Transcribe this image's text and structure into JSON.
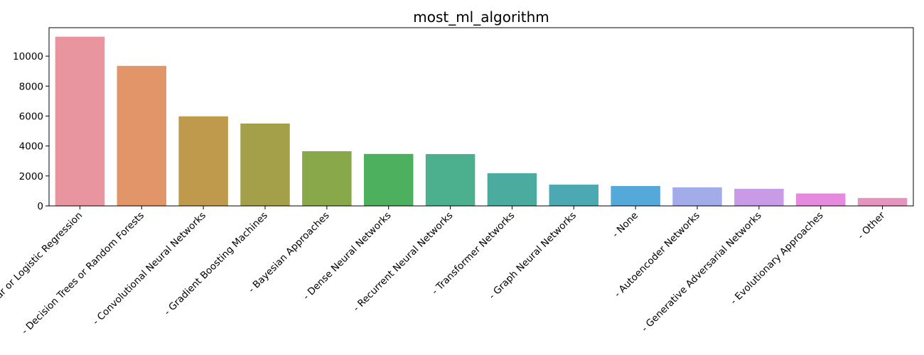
{
  "chart_data": {
    "type": "bar",
    "title": "most_ml_algorithm",
    "xlabel": "",
    "ylabel": "",
    "categories": [
      "- Linear or Logistic Regression",
      "- Decision Trees or Random Forests",
      "- Convolutional Neural Networks",
      "- Gradient Boosting Machines",
      "- Bayesian Approaches",
      "- Dense Neural Networks",
      "- Recurrent Neural Networks",
      "- Transformer Networks",
      "- Graph Neural Networks",
      "- None",
      "- Autoencoder Networks",
      "- Generative Adversarial Networks",
      "- Evolutionary Approaches",
      "- Other"
    ],
    "values": [
      11300,
      9350,
      5980,
      5500,
      3650,
      3470,
      3460,
      2180,
      1420,
      1330,
      1240,
      1140,
      830,
      530
    ],
    "colors": [
      "#e8959f",
      "#e29568",
      "#c09a4c",
      "#a4a04a",
      "#88a84a",
      "#4cb05e",
      "#4cb08e",
      "#4aab9e",
      "#4ca8b2",
      "#55a9d8",
      "#a2ace8",
      "#c99ae6",
      "#e68ae0",
      "#e693c0"
    ],
    "ylim": [
      0,
      11900
    ],
    "yticks": [
      0,
      2000,
      4000,
      6000,
      8000,
      10000
    ],
    "grid": false,
    "legend": "none"
  }
}
